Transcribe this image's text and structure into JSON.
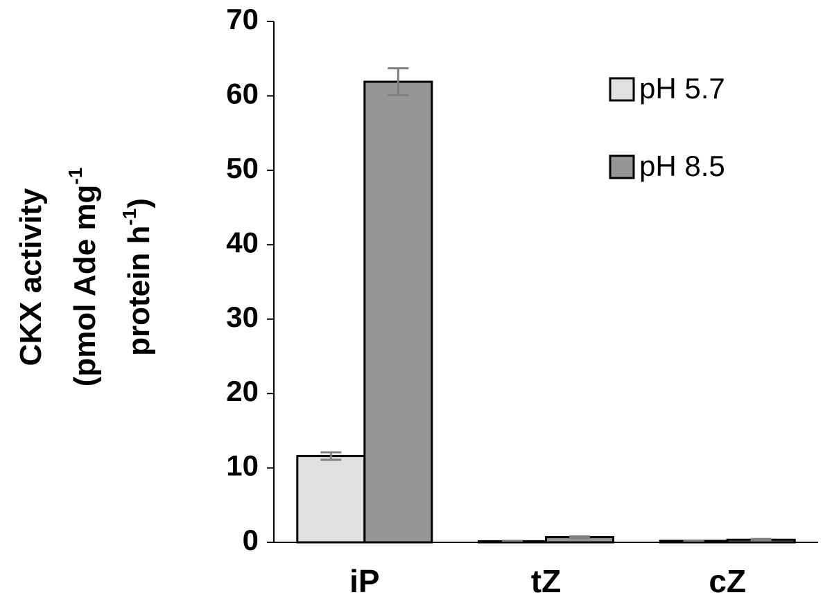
{
  "chart_data": {
    "type": "bar",
    "ylabel_lines": [
      [
        "CKX activity"
      ],
      [
        "(pmol Ade mg",
        "-1"
      ],
      [
        "protein h",
        "-1",
        ")"
      ]
    ],
    "categories": [
      "iP",
      "tZ",
      "cZ"
    ],
    "series": [
      {
        "name": "pH 5.7",
        "color": "#e0e0e0",
        "values": [
          11.6,
          0.15,
          0.2
        ],
        "errors": [
          0.5,
          0.05,
          0.05
        ]
      },
      {
        "name": "pH 8.5",
        "color": "#969696",
        "values": [
          61.9,
          0.7,
          0.35
        ],
        "errors": [
          1.8,
          0.1,
          0.1
        ]
      }
    ],
    "error_color": "#7f7f7f",
    "ylim": [
      0,
      70
    ],
    "yticks": [
      0,
      10,
      20,
      30,
      40,
      50,
      60,
      70
    ],
    "grid": false,
    "legend": "upper right"
  }
}
